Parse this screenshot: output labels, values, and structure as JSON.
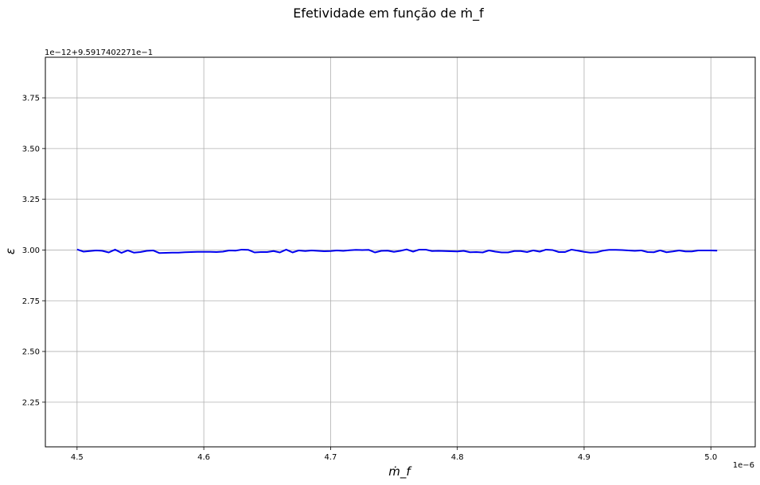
{
  "chart_data": {
    "type": "line",
    "title": "Efetividade em função de ṁ_f",
    "xlabel": "ṁ_f",
    "ylabel": "ε",
    "x_offset_label": "1e−6",
    "y_offset_label": "1e−12+9.5917402271e−1",
    "xlim": [
      4.475,
      5.035
    ],
    "ylim": [
      2.03,
      3.95
    ],
    "xticks": [
      4.5,
      4.6,
      4.7,
      4.8,
      4.9,
      5.0
    ],
    "xtick_labels": [
      "4.5",
      "4.6",
      "4.7",
      "4.8",
      "4.9",
      "5.0"
    ],
    "yticks": [
      2.25,
      2.5,
      2.75,
      3.0,
      3.25,
      3.5,
      3.75
    ],
    "ytick_labels": [
      "2.25",
      "2.50",
      "2.75",
      "3.00",
      "3.25",
      "3.50",
      "3.75"
    ],
    "grid": true,
    "series": [
      {
        "color": "#0000ee",
        "x_start": 4.5,
        "x_step": 0.005,
        "values": [
          3.003,
          2.992,
          2.995,
          2.998,
          2.996,
          2.988,
          3.002,
          2.986,
          2.998,
          2.987,
          2.99,
          2.996,
          2.998,
          2.985,
          2.986,
          2.987,
          2.987,
          2.989,
          2.99,
          2.991,
          2.991,
          2.991,
          2.99,
          2.992,
          2.998,
          2.997,
          3.002,
          3.001,
          2.988,
          2.99,
          2.99,
          2.995,
          2.988,
          3.002,
          2.988,
          2.998,
          2.995,
          2.998,
          2.996,
          2.994,
          2.995,
          2.998,
          2.996,
          2.999,
          3.001,
          3.0,
          3.001,
          2.988,
          2.996,
          2.997,
          2.991,
          2.996,
          3.003,
          2.992,
          3.002,
          3.002,
          2.995,
          2.996,
          2.995,
          2.994,
          2.993,
          2.996,
          2.989,
          2.99,
          2.988,
          2.998,
          2.992,
          2.988,
          2.988,
          2.995,
          2.995,
          2.99,
          2.998,
          2.992,
          3.002,
          3.0,
          2.99,
          2.99,
          3.002,
          2.997,
          2.991,
          2.987,
          2.989,
          2.997,
          3.001,
          3.001,
          3.0,
          2.998,
          2.996,
          2.998,
          2.99,
          2.989,
          2.998,
          2.989,
          2.993,
          2.998,
          2.993,
          2.993,
          2.998,
          2.998,
          2.998,
          2.997
        ]
      }
    ]
  }
}
